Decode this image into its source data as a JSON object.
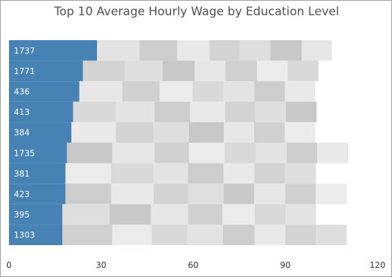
{
  "chart_data": {
    "type": "bar",
    "orientation": "horizontal",
    "stacked": true,
    "title": "Top 10 Average Hourly Wage by Education Level",
    "xlabel": "",
    "ylabel": "",
    "xlim": [
      0,
      120
    ],
    "xticks": [
      "0",
      "30",
      "60",
      "90",
      "120"
    ],
    "grid": false,
    "legend": "none",
    "highlight_color": "#4682b4",
    "categories": [
      "1737",
      "1771",
      "436",
      "413",
      "384",
      "1735",
      "381",
      "423",
      "395",
      "1303"
    ],
    "rows": [
      [
        28.7,
        13.8,
        12.3,
        10.5,
        10.0,
        9.8,
        10.2,
        9.8
      ],
      [
        24.1,
        13.7,
        12.2,
        10.5,
        10.0,
        10.3,
        10.0,
        10.0
      ],
      [
        22.9,
        14.0,
        12.2,
        10.6,
        10.0,
        10.2,
        10.0,
        9.8
      ],
      [
        20.9,
        14.0,
        12.5,
        11.6,
        11.4,
        9.8,
        10.0,
        10.0
      ],
      [
        20.3,
        14.5,
        12.2,
        11.6,
        11.4,
        9.8,
        10.0,
        10.0
      ],
      [
        18.9,
        14.7,
        13.8,
        11.2,
        11.6,
        10.2,
        10.0,
        10.0,
        10.1
      ],
      [
        18.4,
        14.9,
        13.8,
        11.2,
        11.6,
        10.0,
        10.0,
        10.0
      ],
      [
        18.4,
        14.9,
        13.8,
        11.2,
        11.6,
        10.0,
        10.0,
        10.0,
        10.1
      ],
      [
        17.4,
        15.4,
        13.4,
        12.1,
        11.2,
        10.5,
        10.0,
        10.0
      ],
      [
        17.4,
        16.2,
        12.9,
        11.6,
        11.6,
        10.3,
        10.0,
        10.0,
        10.0
      ]
    ]
  }
}
